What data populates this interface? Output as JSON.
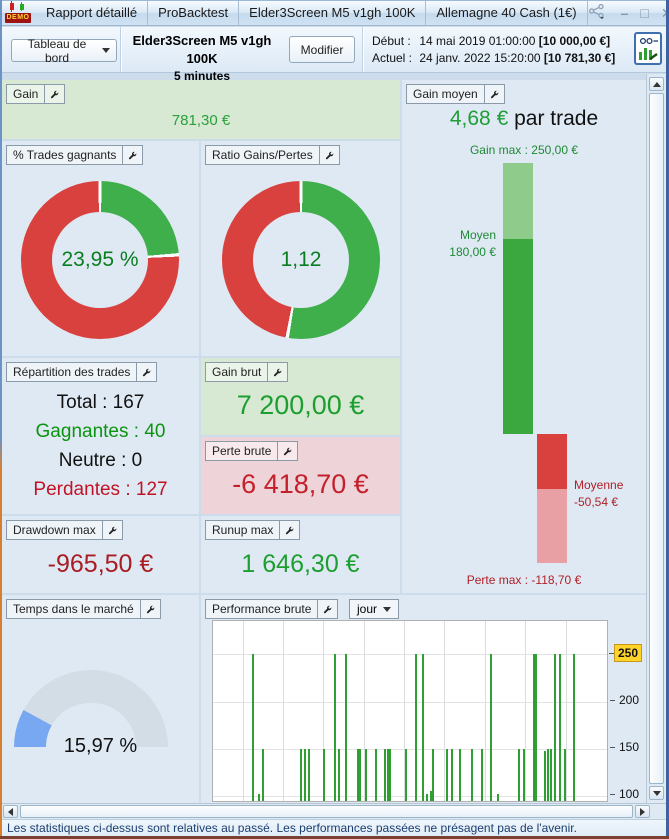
{
  "window": {
    "demo_badge": "DEMO",
    "title_tabs": [
      "Rapport détaillé",
      "ProBacktest",
      "Elder3Screen M5 v1gh 100K",
      "Allemagne 40 Cash (1€)"
    ],
    "controls": {
      "minimize": "–",
      "maximize": "□",
      "close": "✕"
    }
  },
  "toolbar": {
    "view_selector": "Tableau de bord",
    "strategy_name": "Elder3Screen M5 v1gh 100K",
    "timeframe": "5 minutes",
    "modify_button": "Modifier",
    "start": {
      "label": "Début :",
      "datetime": "14 mai 2019 01:00:00",
      "amount": "[10 000,00 €]"
    },
    "current": {
      "label": "Actuel :",
      "datetime": "24 janv. 2022 15:20:00",
      "amount": "[10 781,30 €]"
    }
  },
  "panels": {
    "gain": {
      "title": "Gain",
      "value": "781,30 €"
    },
    "gain_moyen": {
      "title": "Gain moyen",
      "value": "4,68 €",
      "suffix": " par trade",
      "gain_max_label": "Gain max : 250,00 €",
      "moyen_lines": [
        "Moyen",
        "180,00 €"
      ],
      "moyenne_lines": [
        "Moyenne",
        "-50,54 €"
      ],
      "perte_max_label": "Perte max : -118,70 €",
      "bar": {
        "max": 250,
        "avg_win": 180,
        "avg_loss": -50.54,
        "min": -118.7
      }
    },
    "trades_gagnants": {
      "title": "% Trades gagnants",
      "value": "23,95 %",
      "green_pct": 23.95
    },
    "ratio": {
      "title": "Ratio Gains/Pertes",
      "value": "1,12",
      "green_pct": 52.8
    },
    "repartition": {
      "title": "Répartition des trades",
      "rows": [
        {
          "text": "Total : 167",
          "color": "#111111"
        },
        {
          "text": "Gagnantes : 40",
          "color": "#0b9410"
        },
        {
          "text": "Neutre : 0",
          "color": "#111111"
        },
        {
          "text": "Perdantes : 127",
          "color": "#c11325"
        }
      ]
    },
    "gain_brut": {
      "title": "Gain brut",
      "value": "7 200,00 €"
    },
    "perte_brute": {
      "title": "Perte brute",
      "value": "-6 418,70 €"
    },
    "drawdown": {
      "title": "Drawdown max",
      "value": "-965,50 €"
    },
    "runup": {
      "title": "Runup max",
      "value": "1 646,30 €"
    },
    "temps_marche": {
      "title": "Temps dans le marché",
      "value": "15,97 %",
      "pct": 15.97
    },
    "performance": {
      "title": "Performance brute",
      "period": "jour",
      "chart_data": {
        "type": "bar",
        "ylim": [
          95,
          285
        ],
        "yticks": [
          {
            "v": 250,
            "label": "250",
            "highlight": true
          },
          {
            "v": 200,
            "label": "200"
          },
          {
            "v": 150,
            "label": "150"
          },
          {
            "v": 100,
            "label": "100"
          }
        ],
        "xgrid": [
          0.075,
          0.177,
          0.28,
          0.382,
          0.485,
          0.587,
          0.69,
          0.793,
          0.895
        ],
        "bars": [
          [
            0.098,
            250
          ],
          [
            0.114,
            102
          ],
          [
            0.124,
            150
          ],
          [
            0.222,
            150
          ],
          [
            0.232,
            150
          ],
          [
            0.242,
            150
          ],
          [
            0.278,
            150
          ],
          [
            0.306,
            250
          ],
          [
            0.318,
            150
          ],
          [
            0.336,
            250
          ],
          [
            0.366,
            150
          ],
          [
            0.371,
            150
          ],
          [
            0.386,
            150
          ],
          [
            0.412,
            150
          ],
          [
            0.434,
            150
          ],
          [
            0.442,
            150
          ],
          [
            0.447,
            150
          ],
          [
            0.487,
            150
          ],
          [
            0.513,
            250
          ],
          [
            0.53,
            250
          ],
          [
            0.54,
            102
          ],
          [
            0.551,
            106
          ],
          [
            0.556,
            150
          ],
          [
            0.591,
            150
          ],
          [
            0.603,
            150
          ],
          [
            0.624,
            150
          ],
          [
            0.654,
            150
          ],
          [
            0.679,
            150
          ],
          [
            0.702,
            250
          ],
          [
            0.72,
            102
          ],
          [
            0.773,
            150
          ],
          [
            0.788,
            150
          ],
          [
            0.811,
            250
          ],
          [
            0.818,
            250
          ],
          [
            0.841,
            148
          ],
          [
            0.848,
            150
          ],
          [
            0.856,
            150
          ],
          [
            0.866,
            250
          ],
          [
            0.879,
            250
          ],
          [
            0.891,
            150
          ],
          [
            0.914,
            250
          ]
        ]
      }
    }
  },
  "status_bar": "Les statistiques ci-dessus sont relatives au passé. Les performances passées ne présagent pas de l'avenir.",
  "colors": {
    "donut_green": "#3faf4b",
    "donut_red": "#d8413d",
    "gauge_blue": "#79a8f2",
    "gauge_track": "#d2dde6",
    "bar_green": "#2f9e33",
    "tick_highlight_bg": "#ffd42a"
  }
}
